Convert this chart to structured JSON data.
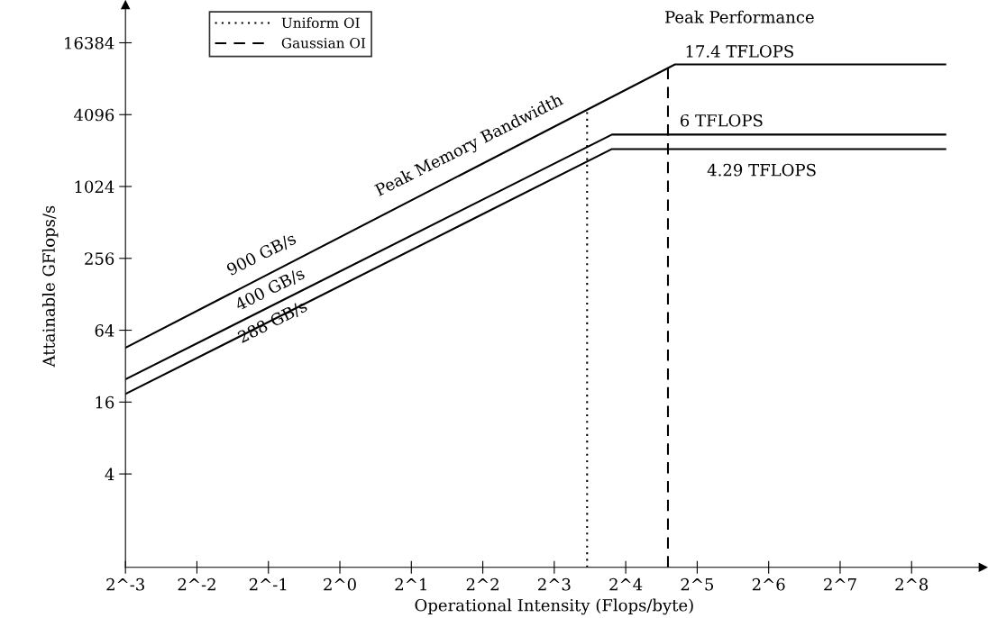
{
  "chart_data": {
    "type": "line",
    "xlabel": "Operational Intensity (Flops/byte)",
    "ylabel": "Attainable GFlops/s",
    "log": "xy",
    "xlim": [
      0.125,
      512
    ],
    "ylim": [
      0.66,
      34000
    ],
    "xticks": [
      {
        "value": 0.125,
        "label": "2^-3"
      },
      {
        "value": 0.25,
        "label": "2^-2"
      },
      {
        "value": 0.5,
        "label": "2^-1"
      },
      {
        "value": 1,
        "label": "2^0"
      },
      {
        "value": 2,
        "label": "2^1"
      },
      {
        "value": 4,
        "label": "2^2"
      },
      {
        "value": 8,
        "label": "2^3"
      },
      {
        "value": 16,
        "label": "2^4"
      },
      {
        "value": 32,
        "label": "2^5"
      },
      {
        "value": 64,
        "label": "2^6"
      },
      {
        "value": 128,
        "label": "2^7"
      },
      {
        "value": 256,
        "label": "2^8"
      }
    ],
    "yticks": [
      4,
      16,
      64,
      256,
      1024,
      4096,
      16384
    ],
    "grid": false,
    "legend": "top left",
    "marker": "none",
    "series": [
      {
        "color": "#000000",
        "line_style": "solid",
        "x": [
          0.125,
          25.8,
          355
        ],
        "values": [
          45.6,
          10800,
          10800
        ]
      },
      {
        "color": "#000000",
        "line_style": "solid",
        "x": [
          0.125,
          14.0,
          355
        ],
        "values": [
          24.8,
          2790,
          2790
        ]
      },
      {
        "color": "#000000",
        "line_style": "solid",
        "x": [
          0.125,
          14.0,
          355
        ],
        "values": [
          18.7,
          2110,
          2110
        ]
      },
      {
        "name": "Uniform OI",
        "color": "#000000",
        "line_style": "dotted",
        "x": [
          11,
          11
        ],
        "values": [
          0.66,
          4300
        ]
      },
      {
        "name": "Gaussian OI",
        "color": "#000000",
        "line_style": "dashed",
        "x": [
          24.1,
          24.1
        ],
        "values": [
          0.66,
          10200
        ]
      }
    ],
    "annotations": [
      "900 GB/s",
      "400 GB/s",
      "288 GB/s",
      "Peak Memory Bandwidth",
      "Peak Performance",
      "17.4 TFLOPS",
      "6 TFLOPS",
      "4.29 TFLOPS"
    ]
  }
}
